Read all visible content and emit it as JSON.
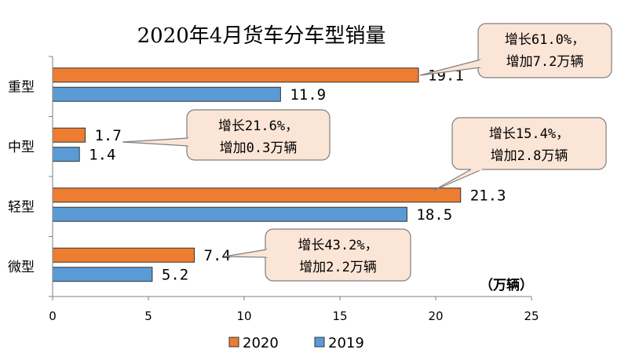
{
  "chart_data": {
    "type": "bar",
    "orientation": "horizontal",
    "title": "2020年4月货车分车型销量",
    "unit_label": "（万辆）",
    "categories": [
      "重型",
      "中型",
      "轻型",
      "微型"
    ],
    "series": [
      {
        "name": "2020",
        "color": "#ED7D31",
        "values": [
          19.1,
          1.7,
          21.3,
          7.4
        ],
        "labels": [
          "19.1",
          "1.7",
          "21.3",
          "7.4"
        ]
      },
      {
        "name": "2019",
        "color": "#5B9BD5",
        "values": [
          11.9,
          1.4,
          18.5,
          5.2
        ],
        "labels": [
          "11.9",
          "1.4",
          "18.5",
          "5.2"
        ]
      }
    ],
    "xlim": [
      0,
      25
    ],
    "xticks": [
      0,
      5,
      10,
      15,
      20,
      25
    ],
    "grid": false,
    "legend_position": "bottom",
    "annotations": [
      {
        "category": "重型",
        "line1": "增长61.0%，",
        "line2": "增加7.2万辆"
      },
      {
        "category": "中型",
        "line1": "增长21.6%，",
        "line2": "增加0.3万辆"
      },
      {
        "category": "轻型",
        "line1": "增长15.4%，",
        "line2": "增加2.8万辆"
      },
      {
        "category": "微型",
        "line1": "增长43.2%，",
        "line2": "增加2.2万辆"
      }
    ],
    "callout_fill": "#FBE5D6",
    "callout_stroke": "#7F7F7F"
  }
}
